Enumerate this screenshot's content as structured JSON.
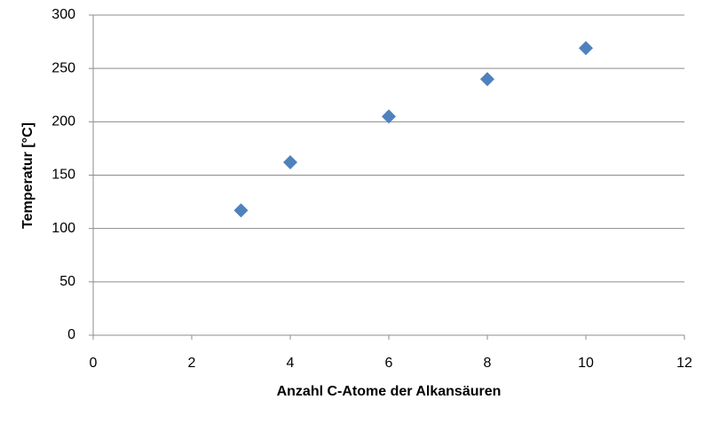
{
  "chart_data": {
    "type": "scatter",
    "x_label": "Anzahl C-Atome der Alkansäuren",
    "y_label": "Temperatur [°C]",
    "x": [
      3,
      4,
      6,
      8,
      10
    ],
    "values": [
      117,
      162,
      205,
      240,
      269
    ],
    "color": "#4f81bd",
    "xlim": [
      0,
      12
    ],
    "xticks": [
      0,
      2,
      4,
      6,
      8,
      10,
      12
    ],
    "ylim": [
      0,
      300
    ],
    "yticks": [
      0,
      50,
      100,
      150,
      200,
      250,
      300
    ],
    "grid": true
  }
}
